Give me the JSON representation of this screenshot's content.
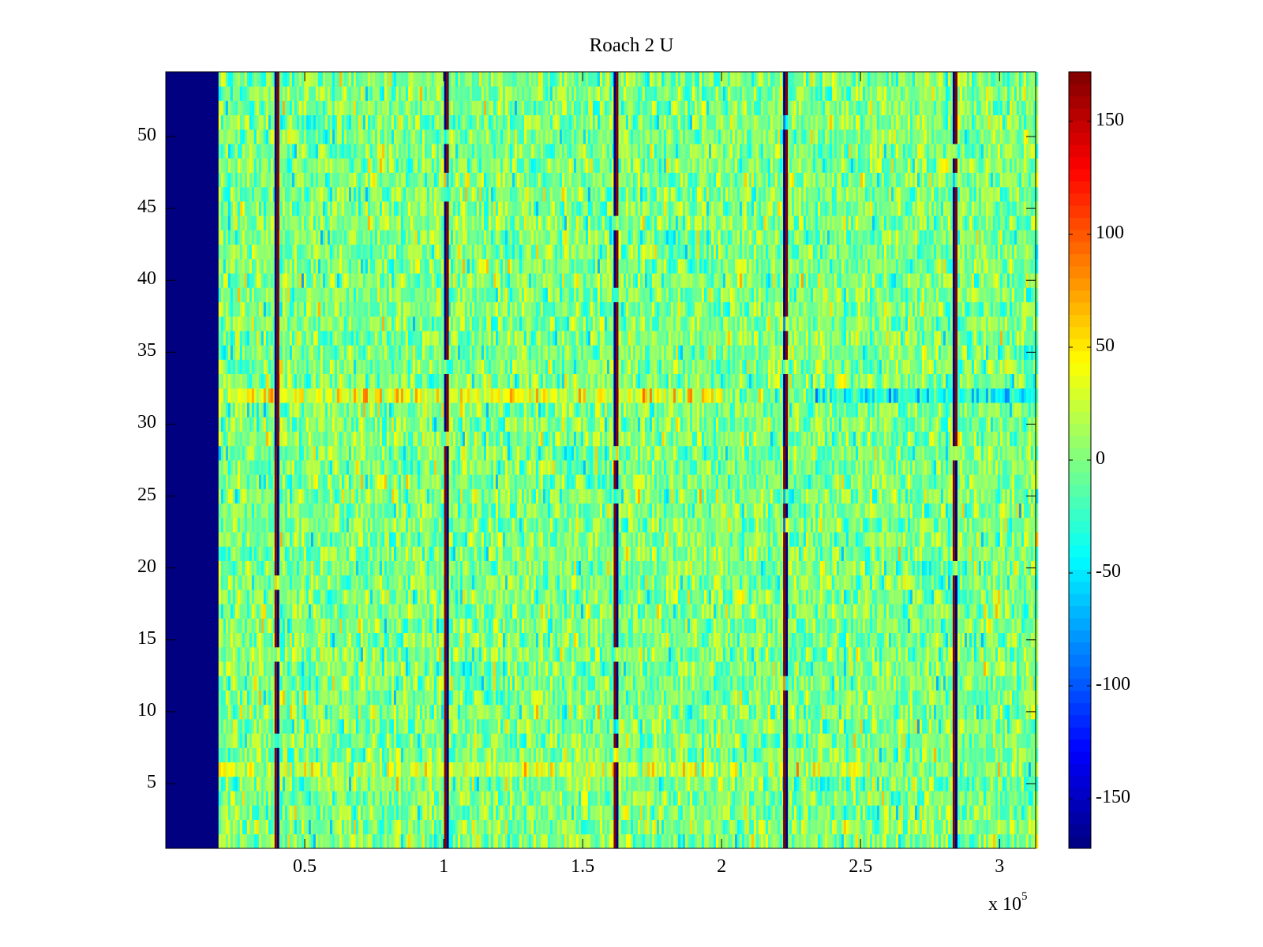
{
  "chart_data": {
    "type": "heatmap",
    "title": "Roach 2 U",
    "xlabel": "",
    "ylabel": "",
    "x_exponent_label": "x 10",
    "x_exponent_power": "5",
    "xlim": [
      0,
      313000
    ],
    "ylim": [
      0.5,
      54.5
    ],
    "xticks": [
      50000,
      100000,
      150000,
      200000,
      250000,
      300000
    ],
    "xtick_labels": [
      "0.5",
      "1",
      "1.5",
      "2",
      "2.5",
      "3"
    ],
    "yticks": [
      5,
      10,
      15,
      20,
      25,
      30,
      35,
      40,
      45,
      50
    ],
    "ytick_labels": [
      "5",
      "10",
      "15",
      "20",
      "25",
      "30",
      "35",
      "40",
      "45",
      "50"
    ],
    "rows": 54,
    "colormap": "jet",
    "clim": [
      -172,
      172
    ],
    "colorbar_ticks": [
      150,
      100,
      50,
      0,
      -50,
      -100,
      -150
    ],
    "colorbar_tick_labels": [
      "150",
      "100",
      "50",
      "0",
      "-50",
      "-100",
      "-150"
    ],
    "empty_region_x_end": 19000,
    "empty_region_value": -172,
    "background_mean": 0,
    "background_spread": 25,
    "stripe_x": [
      40000,
      101000,
      162000,
      223000,
      284000
    ],
    "stripe_values_low_rows": [
      172,
      -172
    ],
    "stripe_values_high_rows": [
      -172,
      172
    ],
    "stripe_swap_row": 28,
    "anomalous_rows": [
      {
        "row": 32,
        "x_start": 19000,
        "x_end": 200000,
        "mean": 35
      },
      {
        "row": 32,
        "x_start": 230000,
        "x_end": 313000,
        "mean": -40
      },
      {
        "row": 6,
        "x_start": 19000,
        "x_end": 250000,
        "mean": 20
      }
    ]
  }
}
